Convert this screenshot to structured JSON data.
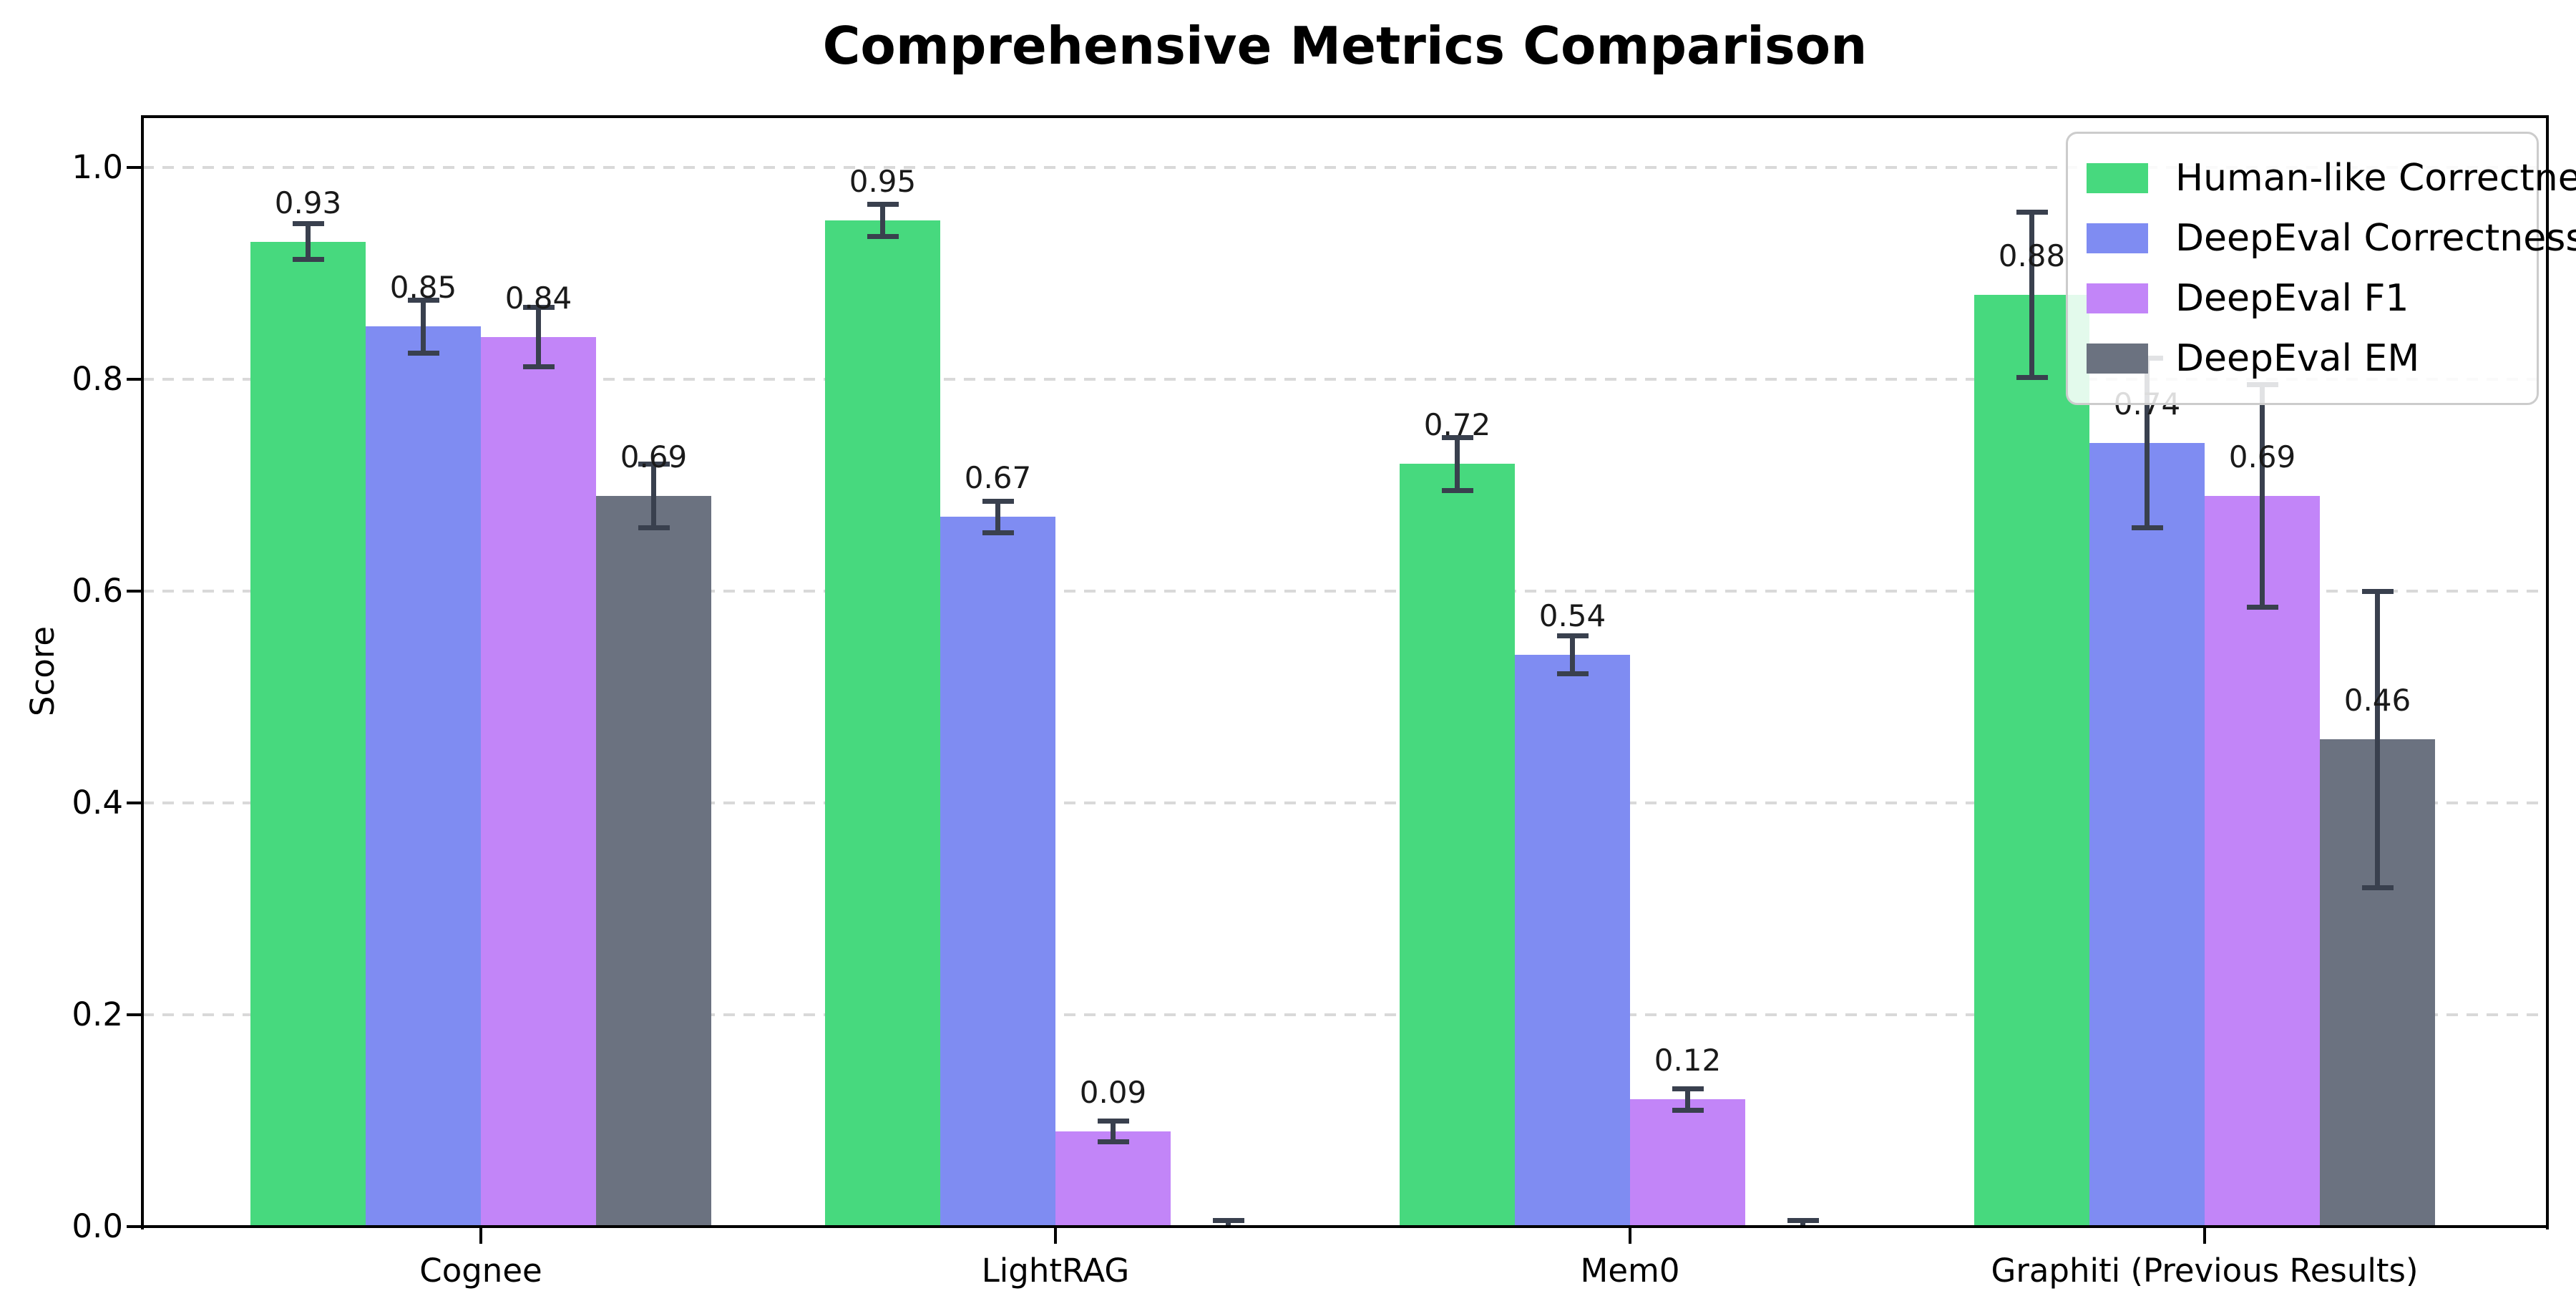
{
  "chart_data": {
    "type": "bar",
    "title": "Comprehensive Metrics Comparison",
    "xlabel": "",
    "ylabel": "Score",
    "ylim": [
      0,
      1.047
    ],
    "yticks": [
      0.0,
      0.2,
      0.4,
      0.6,
      0.8,
      1.0
    ],
    "ytick_labels": [
      "0.0",
      "0.2",
      "0.4",
      "0.6",
      "0.8",
      "1.0"
    ],
    "grid": "horizontal dashed",
    "legend_position": "upper right",
    "categories": [
      "Cognee",
      "LightRAG",
      "Mem0",
      "Graphiti (Previous Results)"
    ],
    "series": [
      {
        "name": "Human-like Correctness",
        "color": "#47d97e",
        "values": [
          0.93,
          0.95,
          0.72,
          0.88
        ],
        "errors": [
          0.017,
          0.015,
          0.025,
          0.078
        ],
        "labels": [
          "0.93",
          "0.95",
          "0.72",
          "0.88"
        ]
      },
      {
        "name": "DeepEval Correctness",
        "color": "#7f8cf2",
        "values": [
          0.85,
          0.67,
          0.54,
          0.74
        ],
        "errors": [
          0.025,
          0.015,
          0.018,
          0.08
        ],
        "labels": [
          "0.85",
          "0.67",
          "0.54",
          "0.74"
        ]
      },
      {
        "name": "DeepEval F1",
        "color": "#c285f8",
        "values": [
          0.84,
          0.09,
          0.12,
          0.69
        ],
        "errors": [
          0.028,
          0.01,
          0.01,
          0.105
        ],
        "labels": [
          "0.84",
          "0.09",
          "0.12",
          "0.69"
        ]
      },
      {
        "name": "DeepEval EM",
        "color": "#6b7280",
        "values": [
          0.69,
          0.0,
          0.0,
          0.46
        ],
        "errors": [
          0.03,
          0.006,
          0.006,
          0.14
        ],
        "labels": [
          "0.69",
          null,
          null,
          "0.46"
        ]
      }
    ],
    "errorbar_color": "#39404e",
    "gridline_color": "#d9d9d9",
    "spine_color": "#000000"
  }
}
